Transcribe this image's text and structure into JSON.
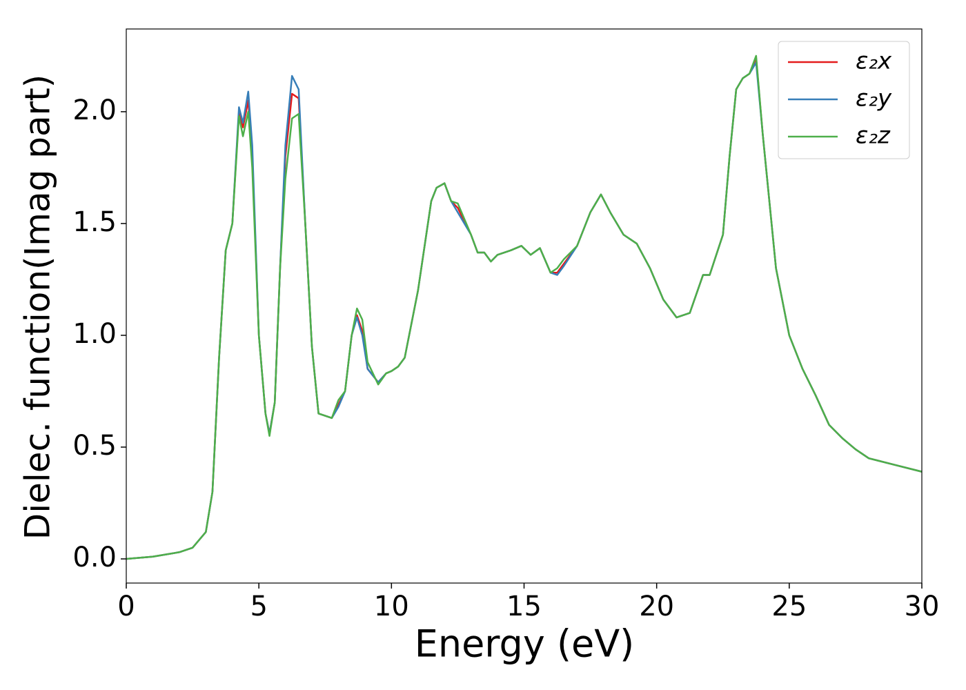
{
  "chart_data": {
    "type": "line",
    "xlabel": "Energy (eV)",
    "ylabel": "Dielec. function(Imag part)",
    "x": [
      0,
      1,
      2,
      2.5,
      3,
      3.25,
      3.5,
      3.75,
      4,
      4.25,
      4.4,
      4.6,
      4.75,
      5,
      5.25,
      5.4,
      5.6,
      5.8,
      6,
      6.25,
      6.5,
      6.75,
      7,
      7.25,
      7.5,
      7.75,
      8,
      8.25,
      8.5,
      8.7,
      8.9,
      9.1,
      9.5,
      9.8,
      10,
      10.25,
      10.5,
      11,
      11.5,
      11.7,
      12,
      12.25,
      12.5,
      13,
      13.25,
      13.5,
      13.75,
      14,
      14.5,
      14.9,
      15.25,
      15.6,
      16,
      16.25,
      16.5,
      17,
      17.5,
      17.9,
      18.25,
      18.75,
      19.25,
      19.75,
      20.25,
      20.75,
      21.25,
      21.75,
      22,
      22.5,
      22.75,
      23,
      23.25,
      23.5,
      23.75,
      24,
      24.25,
      24.5,
      25,
      25.5,
      26,
      26.5,
      27,
      27.5,
      28,
      29,
      30
    ],
    "series": [
      {
        "name": "ε₂x",
        "color": "#e41a1c",
        "values": [
          0,
          0.01,
          0.03,
          0.05,
          0.12,
          0.3,
          0.9,
          1.38,
          1.5,
          2.0,
          1.93,
          2.05,
          1.8,
          1.0,
          0.65,
          0.56,
          0.7,
          1.3,
          1.8,
          2.08,
          2.06,
          1.5,
          0.95,
          0.65,
          0.64,
          0.63,
          0.69,
          0.75,
          1.0,
          1.09,
          1.02,
          0.85,
          0.79,
          0.83,
          0.84,
          0.86,
          0.9,
          1.2,
          1.6,
          1.66,
          1.68,
          1.6,
          1.57,
          1.45,
          1.37,
          1.37,
          1.33,
          1.36,
          1.38,
          1.4,
          1.36,
          1.39,
          1.28,
          1.28,
          1.32,
          1.4,
          1.55,
          1.63,
          1.55,
          1.45,
          1.41,
          1.3,
          1.16,
          1.08,
          1.1,
          1.27,
          1.27,
          1.45,
          1.8,
          2.1,
          2.15,
          2.17,
          2.24,
          1.9,
          1.6,
          1.3,
          1.0,
          0.85,
          0.73,
          0.6,
          0.54,
          0.49,
          0.45,
          0.42,
          0.39
        ]
      },
      {
        "name": "ε₂y",
        "color": "#377eb8",
        "values": [
          0,
          0.01,
          0.03,
          0.05,
          0.12,
          0.3,
          0.9,
          1.38,
          1.5,
          2.02,
          1.95,
          2.09,
          1.85,
          1.0,
          0.65,
          0.56,
          0.7,
          1.3,
          1.85,
          2.16,
          2.1,
          1.5,
          0.95,
          0.65,
          0.64,
          0.63,
          0.68,
          0.75,
          1.0,
          1.08,
          1.0,
          0.85,
          0.79,
          0.83,
          0.84,
          0.86,
          0.9,
          1.2,
          1.6,
          1.66,
          1.68,
          1.6,
          1.55,
          1.45,
          1.37,
          1.37,
          1.33,
          1.36,
          1.38,
          1.4,
          1.36,
          1.39,
          1.28,
          1.27,
          1.31,
          1.4,
          1.55,
          1.63,
          1.55,
          1.45,
          1.41,
          1.3,
          1.16,
          1.08,
          1.1,
          1.27,
          1.27,
          1.45,
          1.8,
          2.1,
          2.15,
          2.17,
          2.22,
          1.9,
          1.6,
          1.3,
          1.0,
          0.85,
          0.73,
          0.6,
          0.54,
          0.49,
          0.45,
          0.42,
          0.39
        ]
      },
      {
        "name": "ε₂z",
        "color": "#4daf4a",
        "values": [
          0,
          0.01,
          0.03,
          0.05,
          0.12,
          0.3,
          0.9,
          1.38,
          1.5,
          1.98,
          1.89,
          2.0,
          1.75,
          1.0,
          0.65,
          0.55,
          0.7,
          1.3,
          1.7,
          1.97,
          1.99,
          1.5,
          0.95,
          0.65,
          0.64,
          0.63,
          0.71,
          0.75,
          1.0,
          1.12,
          1.07,
          0.88,
          0.78,
          0.83,
          0.84,
          0.86,
          0.9,
          1.2,
          1.6,
          1.66,
          1.68,
          1.6,
          1.59,
          1.45,
          1.37,
          1.37,
          1.33,
          1.36,
          1.38,
          1.4,
          1.36,
          1.39,
          1.28,
          1.3,
          1.34,
          1.4,
          1.55,
          1.63,
          1.55,
          1.45,
          1.41,
          1.3,
          1.16,
          1.08,
          1.1,
          1.27,
          1.27,
          1.45,
          1.8,
          2.1,
          2.15,
          2.17,
          2.25,
          1.9,
          1.6,
          1.3,
          1.0,
          0.85,
          0.73,
          0.6,
          0.54,
          0.49,
          0.45,
          0.42,
          0.39
        ]
      }
    ],
    "xlim": [
      0,
      30
    ],
    "xticks": [
      0,
      5,
      10,
      15,
      20,
      25,
      30
    ],
    "ylim": [
      -0.108,
      2.37
    ],
    "yticks": [
      {
        "value": 0,
        "label": "0.0"
      },
      0.5,
      {
        "value": 1,
        "label": "1.0"
      },
      1.5,
      {
        "value": 2,
        "label": "2.0"
      }
    ],
    "legend": "upper right",
    "grid": false
  }
}
